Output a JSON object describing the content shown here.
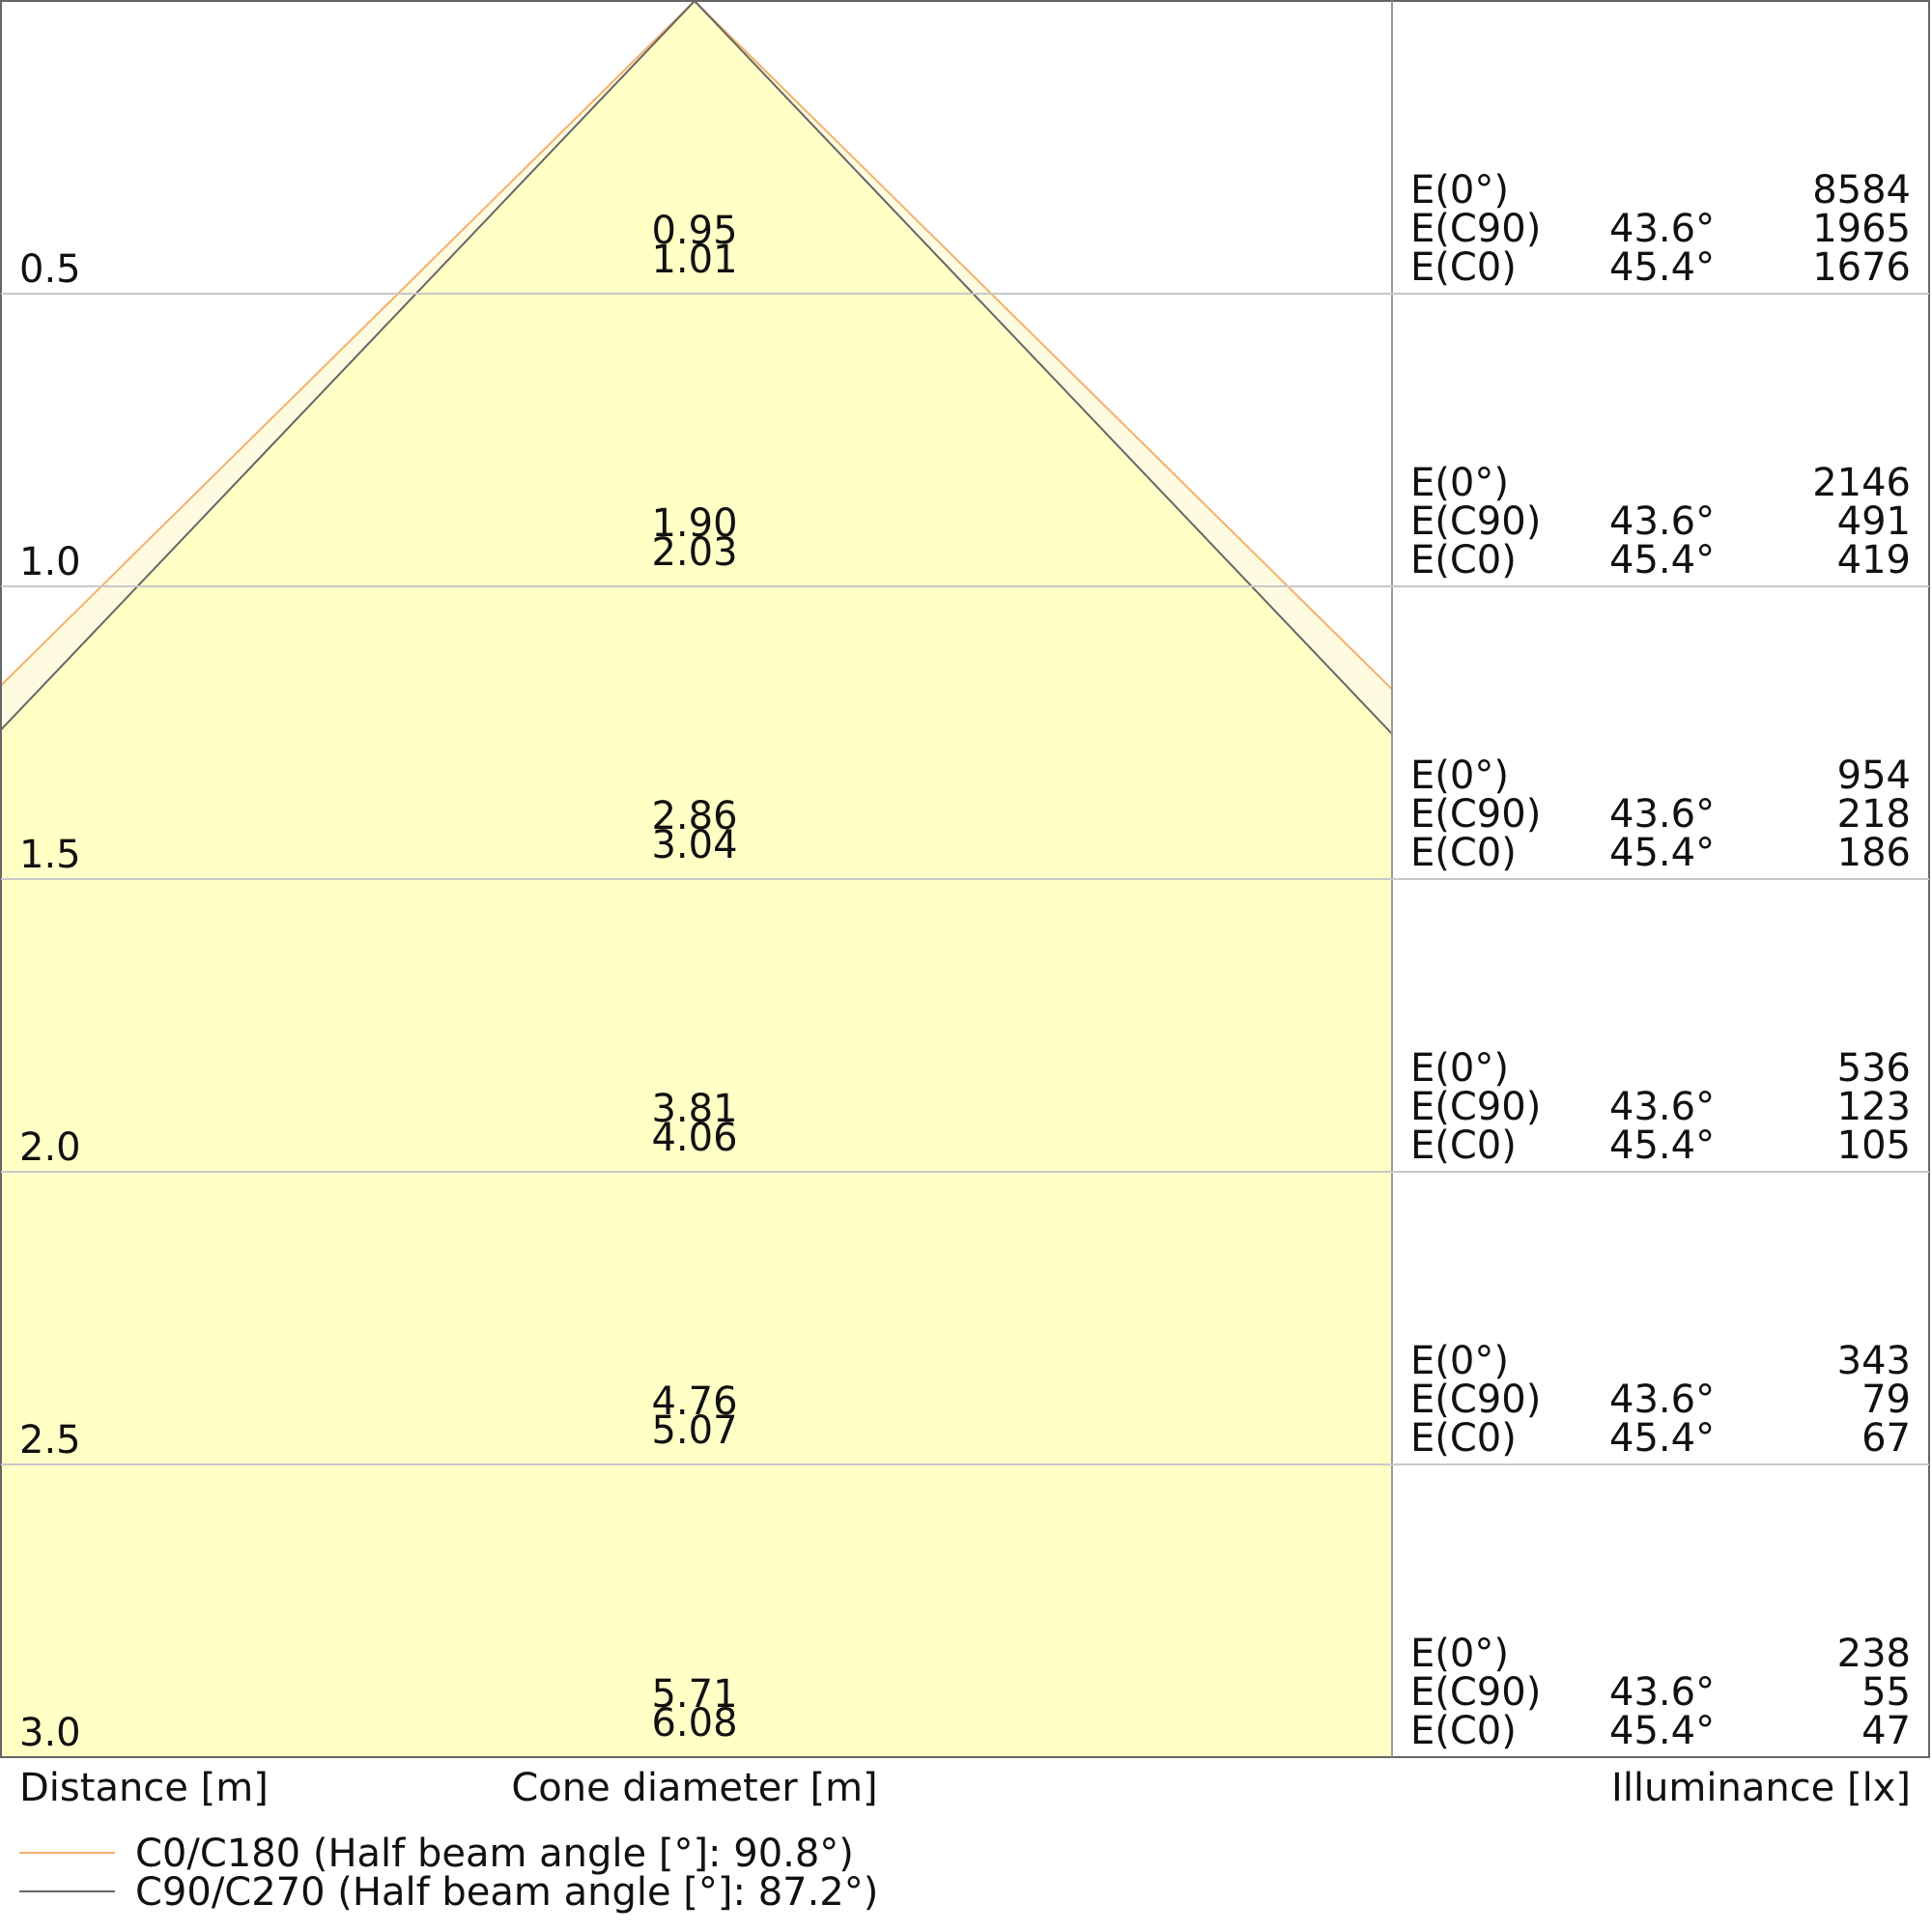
{
  "distance_axis_label": "Distance [m]",
  "diameter_axis_label": "Cone diameter [m]",
  "illuminance_axis_label": "Illuminance [lx]",
  "illuminance_labels": [
    "E(0°)",
    "E(C90)",
    "E(C0)"
  ],
  "angles": {
    "c90": "43.6°",
    "c0": "45.4°"
  },
  "legend": [
    {
      "name": "C0/C180 (Half beam angle [°]: 90.8°)",
      "color": "#f5b06a"
    },
    {
      "name": "C90/C270 (Half beam angle [°]: 87.2°)",
      "color": "#666666"
    }
  ],
  "rows": [
    {
      "distance": 0.5,
      "diameter_c90": 0.95,
      "diameter_c0": 1.01,
      "e0": 8584,
      "ec90": 1965,
      "ec0": 1676
    },
    {
      "distance": {
        "value": 1,
        "label": "1.0"
      },
      "diameter_c90": {
        "value": 1.9,
        "label": "1.90"
      },
      "diameter_c0": 2.03,
      "e0": 2146,
      "ec90": 491,
      "ec0": 419
    },
    {
      "distance": 1.5,
      "diameter_c90": 2.86,
      "diameter_c0": 3.04,
      "e0": 954,
      "ec90": 218,
      "ec0": 186
    },
    {
      "distance": {
        "value": 2,
        "label": "2.0"
      },
      "diameter_c90": 3.81,
      "diameter_c0": 4.06,
      "e0": 536,
      "ec90": 123,
      "ec0": 105
    },
    {
      "distance": 2.5,
      "diameter_c90": 4.76,
      "diameter_c0": 5.07,
      "e0": 343,
      "ec90": 79,
      "ec0": 67
    },
    {
      "distance": {
        "value": 3,
        "label": "3.0"
      },
      "diameter_c90": 5.71,
      "diameter_c0": 6.08,
      "e0": 238,
      "ec90": 55,
      "ec0": 47
    }
  ]
}
